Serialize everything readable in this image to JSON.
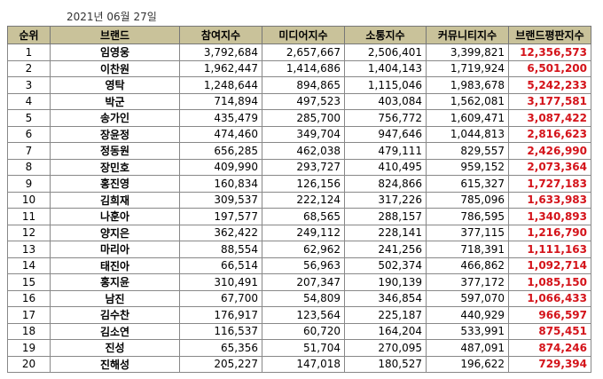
{
  "date": "2021년 06월 27일",
  "headers": [
    "순위",
    "브랜드",
    "참여지수",
    "미디어지수",
    "소통지수",
    "커뮤니티지수",
    "브랜드평판지수"
  ],
  "rows": [
    [
      "1",
      "임영웅",
      "3,792,684",
      "2,657,667",
      "2,506,401",
      "3,399,821",
      "12,356,573"
    ],
    [
      "2",
      "이찬원",
      "1,962,447",
      "1,414,686",
      "1,404,143",
      "1,719,924",
      "6,501,200"
    ],
    [
      "3",
      "영탁",
      "1,248,644",
      "894,865",
      "1,115,046",
      "1,983,678",
      "5,242,233"
    ],
    [
      "4",
      "박군",
      "714,894",
      "497,523",
      "403,084",
      "1,562,081",
      "3,177,581"
    ],
    [
      "5",
      "송가인",
      "435,479",
      "285,700",
      "756,772",
      "1,609,471",
      "3,087,422"
    ],
    [
      "6",
      "장윤정",
      "474,460",
      "349,704",
      "947,646",
      "1,044,813",
      "2,816,623"
    ],
    [
      "7",
      "정동원",
      "656,285",
      "462,038",
      "479,111",
      "829,557",
      "2,426,990"
    ],
    [
      "8",
      "장민호",
      "409,990",
      "293,727",
      "410,495",
      "959,152",
      "2,073,364"
    ],
    [
      "9",
      "홍진영",
      "160,834",
      "126,156",
      "824,866",
      "615,327",
      "1,727,183"
    ],
    [
      "10",
      "김희재",
      "309,537",
      "222,124",
      "317,226",
      "785,096",
      "1,633,983"
    ],
    [
      "11",
      "나훈아",
      "197,577",
      "68,565",
      "288,157",
      "786,595",
      "1,340,893"
    ],
    [
      "12",
      "양지은",
      "362,422",
      "249,112",
      "228,141",
      "377,115",
      "1,216,790"
    ],
    [
      "13",
      "마리아",
      "88,554",
      "62,962",
      "241,256",
      "718,391",
      "1,111,163"
    ],
    [
      "14",
      "태진아",
      "66,514",
      "56,963",
      "502,374",
      "466,862",
      "1,092,714"
    ],
    [
      "15",
      "홍지윤",
      "310,491",
      "207,347",
      "190,139",
      "377,172",
      "1,085,150"
    ],
    [
      "16",
      "남진",
      "67,700",
      "54,809",
      "346,854",
      "597,070",
      "1,066,433"
    ],
    [
      "17",
      "김수찬",
      "176,917",
      "123,564",
      "225,187",
      "440,929",
      "966,597"
    ],
    [
      "18",
      "김소연",
      "116,537",
      "60,720",
      "164,204",
      "533,991",
      "875,451"
    ],
    [
      "19",
      "진성",
      "65,356",
      "51,704",
      "270,095",
      "487,091",
      "874,246"
    ],
    [
      "20",
      "진해성",
      "205,227",
      "147,018",
      "180,527",
      "196,622",
      "729,394"
    ]
  ]
}
